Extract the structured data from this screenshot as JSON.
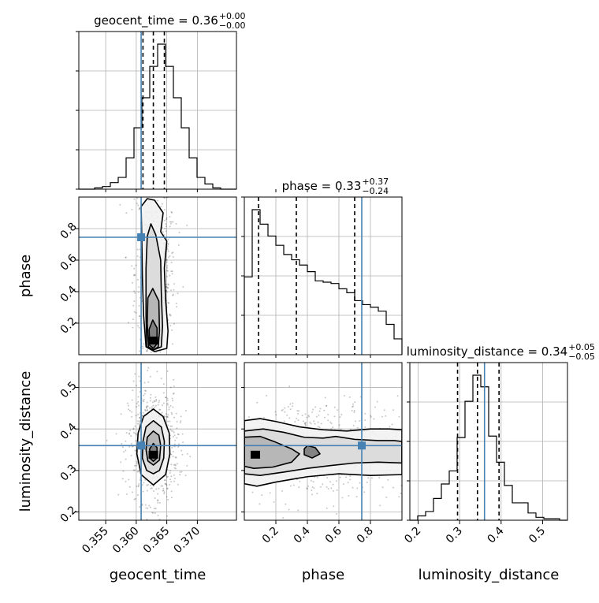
{
  "chart_data": {
    "type": "corner",
    "truth_color": "#4682b4",
    "parameters": [
      {
        "name": "geocent_time",
        "title_value": "0.36",
        "title_plus": "+0.00",
        "title_minus": "−0.00",
        "range": [
          0.3506,
          0.3764
        ],
        "ticks": [
          0.355,
          0.36,
          0.365,
          0.37
        ],
        "tick_labels": [
          "0.355",
          "0.360",
          "0.365",
          "0.370"
        ],
        "truth": 0.3608,
        "quantiles": [
          0.3611,
          0.3628,
          0.3646
        ],
        "hist": {
          "edges": [
            0.3506,
            0.35189,
            0.35318,
            0.35447,
            0.35576,
            0.35705,
            0.35834,
            0.35963,
            0.36092,
            0.36221,
            0.3635,
            0.36479,
            0.36608,
            0.36737,
            0.36866,
            0.36995,
            0.37124,
            0.37253,
            0.37382,
            0.37511,
            0.3764
          ],
          "counts": [
            0,
            0,
            1,
            2,
            5,
            9,
            24,
            47,
            70,
            94,
            111,
            94,
            70,
            47,
            24,
            9,
            4,
            1,
            0,
            0
          ]
        }
      },
      {
        "name": "phase",
        "title_value": "0.33",
        "title_plus": "+0.37",
        "title_minus": "−0.24",
        "range": [
          0.0,
          1.0
        ],
        "ticks": [
          0.2,
          0.4,
          0.6,
          0.8
        ],
        "tick_labels": [
          "0.2",
          "0.4",
          "0.6",
          "0.8"
        ],
        "truth": 0.745,
        "quantiles": [
          0.09,
          0.33,
          0.7
        ],
        "hist": {
          "edges": [
            0.0,
            0.05,
            0.1,
            0.15,
            0.2,
            0.25,
            0.3,
            0.35,
            0.4,
            0.45,
            0.5,
            0.55,
            0.6,
            0.65,
            0.7,
            0.75,
            0.8,
            0.85,
            0.9,
            0.95,
            1.0
          ],
          "counts": [
            59,
            110,
            99,
            90,
            83,
            76,
            72,
            68,
            63,
            56,
            55,
            54,
            50,
            47,
            41,
            38,
            36,
            33,
            23,
            12
          ]
        }
      },
      {
        "name": "luminosity_distance",
        "title_value": "0.34",
        "title_plus": "+0.05",
        "title_minus": "−0.05",
        "range": [
          0.18,
          0.56
        ],
        "ticks": [
          0.2,
          0.3,
          0.4,
          0.5
        ],
        "tick_labels": [
          "0.2",
          "0.3",
          "0.4",
          "0.5"
        ],
        "truth": 0.36,
        "quantiles": [
          0.295,
          0.343,
          0.395
        ],
        "hist": {
          "edges": [
            0.18,
            0.199,
            0.218,
            0.237,
            0.256,
            0.275,
            0.294,
            0.313,
            0.332,
            0.351,
            0.37,
            0.389,
            0.408,
            0.427,
            0.446,
            0.465,
            0.484,
            0.503,
            0.522,
            0.541,
            0.56
          ],
          "counts": [
            0,
            3,
            6,
            15,
            25,
            34,
            57,
            82,
            100,
            92,
            58,
            40,
            24,
            12,
            12,
            5,
            2,
            1,
            1,
            0
          ]
        }
      }
    ],
    "joint": [
      {
        "x": "geocent_time",
        "y": "phase",
        "density_peak": [
          0.3628,
          0.09
        ],
        "contours": [
          [
            [
              0.3616,
              0.05
            ],
            [
              0.3612,
              0.25
            ],
            [
              0.361,
              0.5
            ],
            [
              0.3609,
              0.75
            ],
            [
              0.3608,
              0.94
            ],
            [
              0.3618,
              0.99
            ],
            [
              0.363,
              0.98
            ],
            [
              0.3644,
              0.9
            ],
            [
              0.364,
              0.78
            ],
            [
              0.365,
              0.72
            ],
            [
              0.3646,
              0.55
            ],
            [
              0.3648,
              0.35
            ],
            [
              0.3652,
              0.15
            ],
            [
              0.365,
              0.04
            ],
            [
              0.363,
              0.02
            ]
          ],
          [
            [
              0.3617,
              0.05
            ],
            [
              0.3616,
              0.25
            ],
            [
              0.3616,
              0.55
            ],
            [
              0.3618,
              0.75
            ],
            [
              0.3624,
              0.83
            ],
            [
              0.3632,
              0.76
            ],
            [
              0.364,
              0.6
            ],
            [
              0.3641,
              0.4
            ],
            [
              0.3643,
              0.18
            ],
            [
              0.3641,
              0.05
            ],
            [
              0.3628,
              0.03
            ]
          ],
          [
            [
              0.362,
              0.05
            ],
            [
              0.3618,
              0.2
            ],
            [
              0.3619,
              0.36
            ],
            [
              0.3627,
              0.42
            ],
            [
              0.3637,
              0.34
            ],
            [
              0.3638,
              0.15
            ],
            [
              0.3636,
              0.05
            ],
            [
              0.3628,
              0.03
            ]
          ],
          [
            [
              0.3622,
              0.06
            ],
            [
              0.3621,
              0.16
            ],
            [
              0.3627,
              0.22
            ],
            [
              0.3634,
              0.17
            ],
            [
              0.3634,
              0.07
            ],
            [
              0.3628,
              0.04
            ]
          ]
        ]
      },
      {
        "x": "geocent_time",
        "y": "luminosity_distance",
        "density_peak": [
          0.3628,
          0.338
        ],
        "contours": [
          [
            [
              0.3628,
              0.448
            ],
            [
              0.3644,
              0.43
            ],
            [
              0.3654,
              0.39
            ],
            [
              0.3655,
              0.34
            ],
            [
              0.3648,
              0.29
            ],
            [
              0.3628,
              0.265
            ],
            [
              0.3608,
              0.29
            ],
            [
              0.3601,
              0.34
            ],
            [
              0.3603,
              0.39
            ],
            [
              0.3612,
              0.43
            ]
          ],
          [
            [
              0.3628,
              0.42
            ],
            [
              0.3641,
              0.405
            ],
            [
              0.3646,
              0.37
            ],
            [
              0.3645,
              0.33
            ],
            [
              0.3638,
              0.3
            ],
            [
              0.3628,
              0.292
            ],
            [
              0.3617,
              0.3
            ],
            [
              0.361,
              0.33
            ],
            [
              0.3611,
              0.37
            ],
            [
              0.3616,
              0.405
            ]
          ],
          [
            [
              0.3628,
              0.395
            ],
            [
              0.3637,
              0.385
            ],
            [
              0.364,
              0.36
            ],
            [
              0.3638,
              0.325
            ],
            [
              0.3628,
              0.313
            ],
            [
              0.3619,
              0.323
            ],
            [
              0.3616,
              0.35
            ],
            [
              0.3618,
              0.38
            ]
          ],
          [
            [
              0.3628,
              0.365
            ],
            [
              0.3634,
              0.355
            ],
            [
              0.3634,
              0.33
            ],
            [
              0.3628,
              0.322
            ],
            [
              0.3622,
              0.33
            ],
            [
              0.3622,
              0.352
            ]
          ]
        ]
      },
      {
        "x": "phase",
        "y": "luminosity_distance",
        "density_peak": [
          0.07,
          0.338
        ],
        "contours": [
          [
            [
              0.0,
              0.42
            ],
            [
              0.1,
              0.425
            ],
            [
              0.2,
              0.418
            ],
            [
              0.35,
              0.405
            ],
            [
              0.5,
              0.398
            ],
            [
              0.65,
              0.395
            ],
            [
              0.8,
              0.4
            ],
            [
              0.92,
              0.4
            ],
            [
              1.0,
              0.398
            ],
            [
              1.0,
              0.29
            ],
            [
              0.8,
              0.288
            ],
            [
              0.6,
              0.292
            ],
            [
              0.4,
              0.285
            ],
            [
              0.2,
              0.272
            ],
            [
              0.08,
              0.262
            ],
            [
              0.0,
              0.268
            ]
          ],
          [
            [
              0.0,
              0.395
            ],
            [
              0.12,
              0.4
            ],
            [
              0.25,
              0.392
            ],
            [
              0.38,
              0.38
            ],
            [
              0.5,
              0.378
            ],
            [
              0.58,
              0.382
            ],
            [
              0.7,
              0.375
            ],
            [
              0.85,
              0.372
            ],
            [
              0.95,
              0.372
            ],
            [
              1.0,
              0.37
            ],
            [
              1.0,
              0.318
            ],
            [
              0.85,
              0.32
            ],
            [
              0.7,
              0.318
            ],
            [
              0.55,
              0.312
            ],
            [
              0.4,
              0.305
            ],
            [
              0.25,
              0.296
            ],
            [
              0.1,
              0.288
            ],
            [
              0.0,
              0.292
            ]
          ],
          [
            [
              0.0,
              0.38
            ],
            [
              0.1,
              0.382
            ],
            [
              0.2,
              0.368
            ],
            [
              0.3,
              0.352
            ],
            [
              0.35,
              0.34
            ],
            [
              0.3,
              0.32
            ],
            [
              0.18,
              0.308
            ],
            [
              0.06,
              0.305
            ],
            [
              0.0,
              0.31
            ]
          ],
          [
            [
              0.4,
              0.36
            ],
            [
              0.45,
              0.355
            ],
            [
              0.48,
              0.34
            ],
            [
              0.43,
              0.33
            ],
            [
              0.38,
              0.338
            ],
            [
              0.38,
              0.352
            ]
          ]
        ]
      }
    ]
  }
}
